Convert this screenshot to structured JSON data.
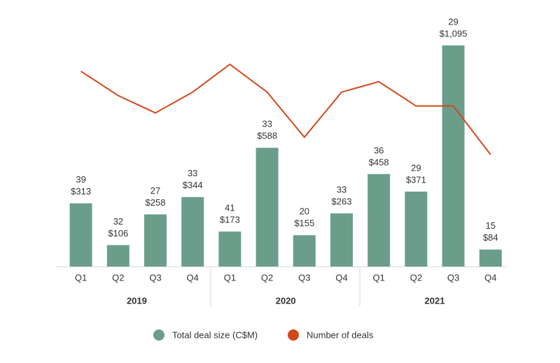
{
  "chart_data": {
    "type": "combo",
    "categories": [
      "Q1",
      "Q2",
      "Q3",
      "Q4",
      "Q1",
      "Q2",
      "Q3",
      "Q4",
      "Q1",
      "Q2",
      "Q3",
      "Q4"
    ],
    "groups": [
      "2019",
      "2020",
      "2021"
    ],
    "series": [
      {
        "name": "Total deal size (C$M)",
        "type": "bar",
        "color": "#6a9e8b",
        "label_color": "#2f8a68",
        "values": [
          313,
          106,
          258,
          344,
          173,
          588,
          155,
          263,
          458,
          371,
          1095,
          84
        ],
        "value_labels": [
          "$313",
          "$106",
          "$258",
          "$344",
          "$173",
          "$588",
          "$155",
          "$263",
          "$458",
          "$371",
          "$1,095",
          "$84"
        ]
      },
      {
        "name": "Number of deals",
        "type": "line",
        "axis": "y2",
        "color": "#d3481b",
        "label_color": "#c8461a",
        "values": [
          39,
          32,
          27,
          33,
          41,
          33,
          20,
          33,
          36,
          29,
          29,
          15
        ]
      }
    ]
  }
}
